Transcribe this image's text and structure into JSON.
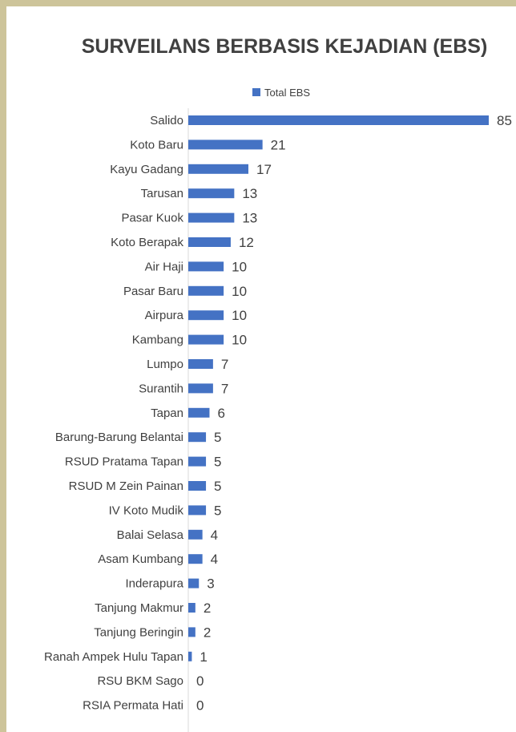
{
  "chart_data": {
    "type": "bar",
    "orientation": "horizontal",
    "title": "SURVEILANS BERBASIS KEJADIAN (EBS)",
    "legend": {
      "position": "top",
      "entries": [
        "Total EBS"
      ]
    },
    "series": [
      {
        "name": "Total EBS",
        "color": "#4472c4",
        "values": [
          85,
          21,
          17,
          13,
          13,
          12,
          10,
          10,
          10,
          10,
          7,
          7,
          6,
          5,
          5,
          5,
          5,
          4,
          4,
          3,
          2,
          2,
          1,
          0,
          0
        ]
      }
    ],
    "categories": [
      "Salido",
      "Koto Baru",
      "Kayu Gadang",
      "Tarusan",
      "Pasar Kuok",
      "Koto Berapak",
      "Air Haji",
      "Pasar Baru",
      "Airpura",
      "Kambang",
      "Lumpo",
      "Surantih",
      "Tapan",
      "Barung-Barung Belantai",
      "RSUD Pratama Tapan",
      "RSUD M Zein Painan",
      "IV Koto Mudik",
      "Balai Selasa",
      "Asam Kumbang",
      "Inderapura",
      "Tanjung Makmur",
      "Tanjung Beringin",
      "Ranah Ampek Hulu Tapan",
      "RSU BKM Sago",
      "RSIA Permata Hati"
    ],
    "xlim": [
      0,
      85
    ],
    "data_labels": true,
    "grid": false
  }
}
